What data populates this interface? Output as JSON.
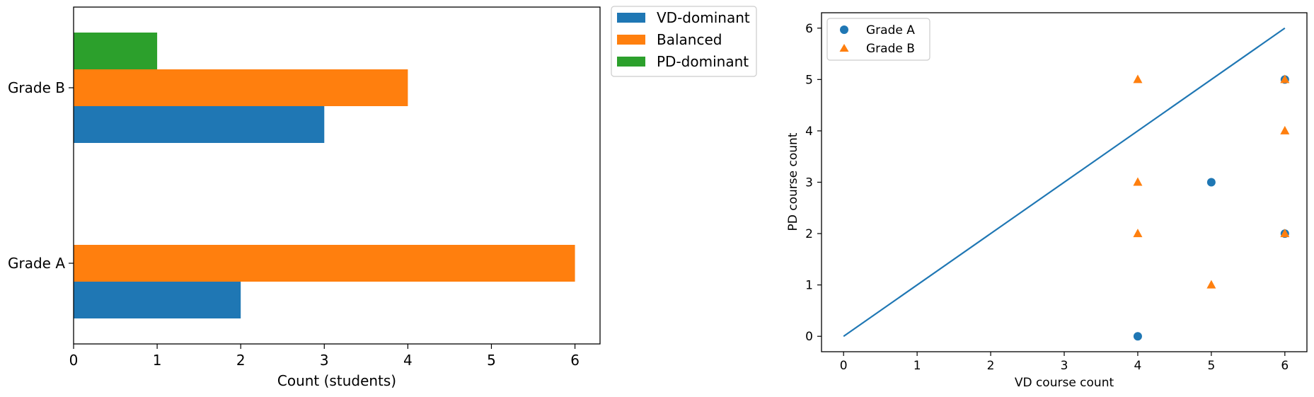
{
  "chart_data": [
    {
      "type": "bar",
      "orientation": "horizontal",
      "categories": [
        "Grade A",
        "Grade B"
      ],
      "series": [
        {
          "name": "VD-dominant",
          "values": [
            2,
            3
          ],
          "color": "#1f77b4"
        },
        {
          "name": "Balanced",
          "values": [
            6,
            4
          ],
          "color": "#ff7f0e"
        },
        {
          "name": "PD-dominant",
          "values": [
            0,
            1
          ],
          "color": "#2ca02c"
        }
      ],
      "xlabel": "Count (students)",
      "ylabel": "",
      "xlim": [
        0,
        6.3
      ],
      "xticks": [
        0,
        1,
        2,
        3,
        4,
        5,
        6
      ],
      "grid": false,
      "legend_position": "outside upper right"
    },
    {
      "type": "scatter",
      "series": [
        {
          "name": "Grade A",
          "marker": "circle",
          "color": "#1f77b4",
          "points": [
            [
              6,
              5
            ],
            [
              5,
              3
            ],
            [
              6,
              2
            ],
            [
              4,
              0
            ]
          ]
        },
        {
          "name": "Grade B",
          "marker": "triangle",
          "color": "#ff7f0e",
          "points": [
            [
              4,
              5
            ],
            [
              6,
              5
            ],
            [
              6,
              4
            ],
            [
              4,
              3
            ],
            [
              4,
              2
            ],
            [
              6,
              2
            ],
            [
              5,
              1
            ]
          ]
        }
      ],
      "reference_line": {
        "points": [
          [
            0,
            0
          ],
          [
            6,
            6
          ]
        ],
        "color": "#1f77b4"
      },
      "xlabel": "VD course count",
      "ylabel": "PD course count",
      "xlim": [
        -0.3,
        6.3
      ],
      "ylim": [
        -0.3,
        6.3
      ],
      "xticks": [
        0,
        1,
        2,
        3,
        4,
        5,
        6
      ],
      "yticks": [
        0,
        1,
        2,
        3,
        4,
        5,
        6
      ],
      "grid": false,
      "legend_position": "upper left"
    }
  ]
}
